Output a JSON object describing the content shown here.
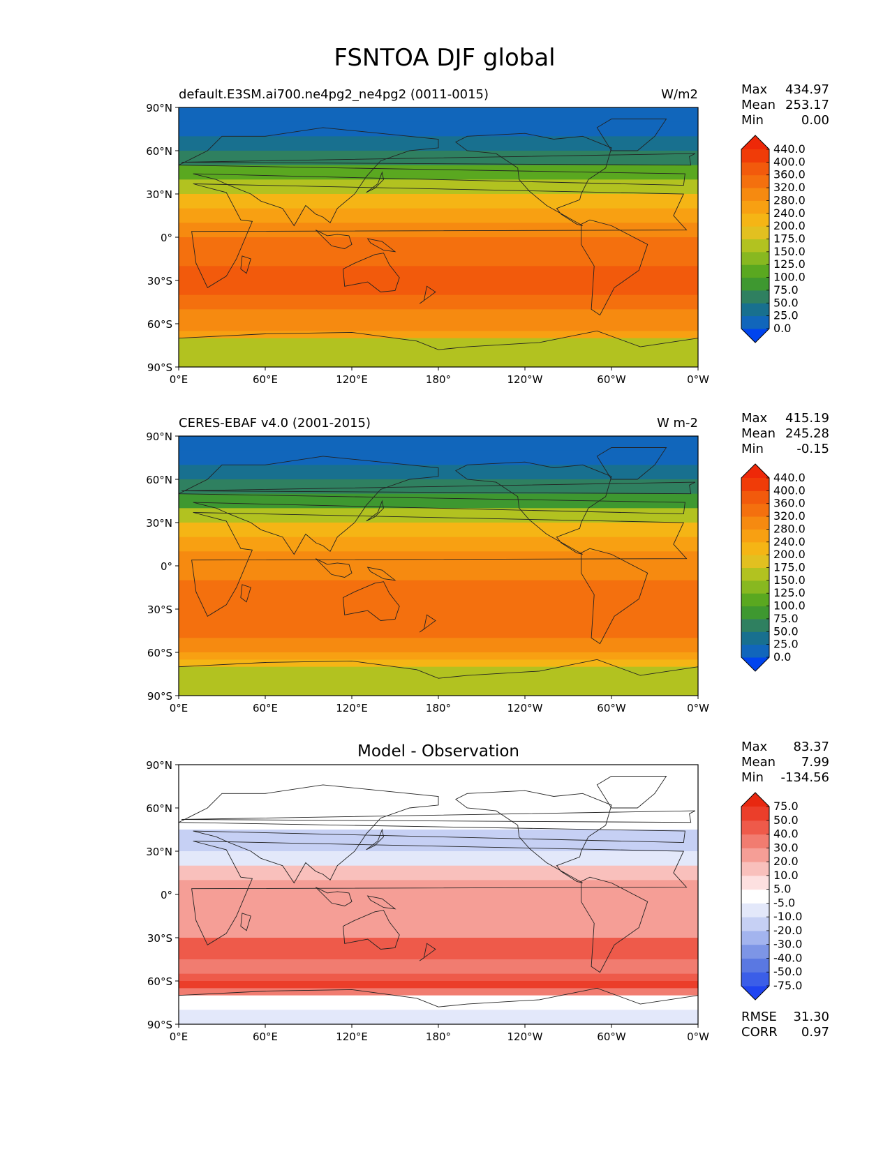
{
  "figure_title": "FSNTOA DJF global",
  "chart_data": [
    {
      "type": "heatmap",
      "title": "default.E3SM.ai700.ne4pg2_ne4pg2 (0011-0015)",
      "units": "W/m2",
      "stats": [
        {
          "label": "Max",
          "value": "434.97"
        },
        {
          "label": "Mean",
          "value": "253.17"
        },
        {
          "label": "Min",
          "value": "0.00"
        }
      ],
      "colorbar_levels": [
        "0.0",
        "25.0",
        "50.0",
        "75.0",
        "100.0",
        "125.0",
        "150.0",
        "175.0",
        "200.0",
        "240.0",
        "280.0",
        "320.0",
        "360.0",
        "400.0",
        "440.0"
      ],
      "colorbar_colors": [
        "#0044ee",
        "#1166bb",
        "#18708f",
        "#2f8060",
        "#3e9830",
        "#5aa820",
        "#88b820",
        "#b2c220",
        "#e2c020",
        "#f5b515",
        "#f8a012",
        "#f68a10",
        "#f4700e",
        "#f25a0c",
        "#f03c08",
        "#ee2808"
      ],
      "lat_bands": [
        {
          "lat": 90,
          "value": 0
        },
        {
          "lat": 80,
          "value": 12
        },
        {
          "lat": 70,
          "value": 40
        },
        {
          "lat": 60,
          "value": 65
        },
        {
          "lat": 50,
          "value": 100
        },
        {
          "lat": 40,
          "value": 160
        },
        {
          "lat": 30,
          "value": 220
        },
        {
          "lat": 20,
          "value": 270
        },
        {
          "lat": 10,
          "value": 290
        },
        {
          "lat": 0,
          "value": 320
        },
        {
          "lat": -10,
          "value": 345
        },
        {
          "lat": -20,
          "value": 375
        },
        {
          "lat": -30,
          "value": 380
        },
        {
          "lat": -40,
          "value": 350
        },
        {
          "lat": -50,
          "value": 310
        },
        {
          "lat": -60,
          "value": 280
        },
        {
          "lat": -65,
          "value": 240
        },
        {
          "lat": -70,
          "value": 170
        },
        {
          "lat": -80,
          "value": 150
        },
        {
          "lat": -90,
          "value": 150
        }
      ]
    },
    {
      "type": "heatmap",
      "title": "CERES-EBAF v4.0 (2001-2015)",
      "units": "W m-2",
      "stats": [
        {
          "label": "Max",
          "value": "415.19"
        },
        {
          "label": "Mean",
          "value": "245.28"
        },
        {
          "label": "Min",
          "value": "-0.15"
        }
      ],
      "colorbar_levels": [
        "0.0",
        "25.0",
        "50.0",
        "75.0",
        "100.0",
        "125.0",
        "150.0",
        "175.0",
        "200.0",
        "240.0",
        "280.0",
        "320.0",
        "360.0",
        "400.0",
        "440.0"
      ],
      "colorbar_colors": [
        "#0044ee",
        "#1166bb",
        "#18708f",
        "#2f8060",
        "#3e9830",
        "#5aa820",
        "#88b820",
        "#b2c220",
        "#e2c020",
        "#f5b515",
        "#f8a012",
        "#f68a10",
        "#f4700e",
        "#f25a0c",
        "#f03c08",
        "#ee2808"
      ],
      "lat_bands": [
        {
          "lat": 90,
          "value": 0
        },
        {
          "lat": 80,
          "value": 12
        },
        {
          "lat": 70,
          "value": 35
        },
        {
          "lat": 60,
          "value": 60
        },
        {
          "lat": 50,
          "value": 95
        },
        {
          "lat": 40,
          "value": 150
        },
        {
          "lat": 30,
          "value": 210
        },
        {
          "lat": 20,
          "value": 250
        },
        {
          "lat": 10,
          "value": 280
        },
        {
          "lat": 0,
          "value": 300
        },
        {
          "lat": -10,
          "value": 330
        },
        {
          "lat": -20,
          "value": 350
        },
        {
          "lat": -30,
          "value": 345
        },
        {
          "lat": -40,
          "value": 320
        },
        {
          "lat": -50,
          "value": 290
        },
        {
          "lat": -60,
          "value": 250
        },
        {
          "lat": -65,
          "value": 210
        },
        {
          "lat": -70,
          "value": 170
        },
        {
          "lat": -80,
          "value": 150
        },
        {
          "lat": -90,
          "value": 150
        }
      ]
    },
    {
      "type": "heatmap",
      "title": "Model - Observation",
      "units": "",
      "stats": [
        {
          "label": "Max",
          "value": "83.37"
        },
        {
          "label": "Mean",
          "value": "7.99"
        },
        {
          "label": "Min",
          "value": "-134.56"
        }
      ],
      "extra_stats": [
        {
          "label": "RMSE",
          "value": "31.30"
        },
        {
          "label": "CORR",
          "value": "0.97"
        }
      ],
      "colorbar_levels": [
        "-75.0",
        "-50.0",
        "-40.0",
        "-30.0",
        "-20.0",
        "-10.0",
        "-5.0",
        "5.0",
        "10.0",
        "20.0",
        "30.0",
        "40.0",
        "50.0",
        "75.0"
      ],
      "colorbar_colors": [
        "#1f44f0",
        "#3b5ee8",
        "#5a78e2",
        "#7d95e6",
        "#a3b4ee",
        "#c6d0f4",
        "#e3e8fa",
        "#ffffff",
        "#fde0e0",
        "#f9c0bc",
        "#f59e96",
        "#f17c70",
        "#ee5a4a",
        "#eb3e2a",
        "#e82810"
      ],
      "lat_bands": [
        {
          "lat": 90,
          "value": 0
        },
        {
          "lat": 70,
          "value": 0
        },
        {
          "lat": 60,
          "value": 2
        },
        {
          "lat": 45,
          "value": -12
        },
        {
          "lat": 30,
          "value": -8
        },
        {
          "lat": 20,
          "value": 15
        },
        {
          "lat": 10,
          "value": 22
        },
        {
          "lat": 0,
          "value": 25
        },
        {
          "lat": -10,
          "value": 20
        },
        {
          "lat": -20,
          "value": 28
        },
        {
          "lat": -30,
          "value": 40
        },
        {
          "lat": -45,
          "value": 35
        },
        {
          "lat": -55,
          "value": 45
        },
        {
          "lat": -60,
          "value": 55
        },
        {
          "lat": -65,
          "value": 30
        },
        {
          "lat": -70,
          "value": 0
        },
        {
          "lat": -80,
          "value": -8
        },
        {
          "lat": -90,
          "value": -5
        }
      ]
    }
  ],
  "axes": {
    "x_ticks": [
      "0°E",
      "60°E",
      "120°E",
      "180°",
      "120°W",
      "60°W",
      "0°W"
    ],
    "y_ticks": [
      "90°N",
      "60°N",
      "30°N",
      "0°",
      "30°S",
      "60°S",
      "90°S"
    ],
    "xlim": [
      0,
      360
    ],
    "ylim": [
      -90,
      90
    ]
  }
}
